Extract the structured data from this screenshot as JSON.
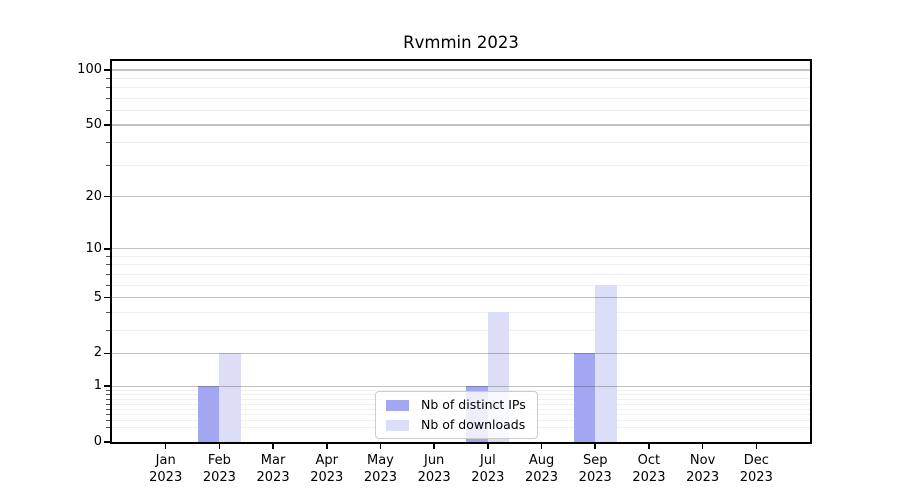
{
  "title": "Rvmmin 2023",
  "chart_data": {
    "type": "bar",
    "title": "Rvmmin 2023",
    "categories": [
      "Jan",
      "Feb",
      "Mar",
      "Apr",
      "May",
      "Jun",
      "Jul",
      "Aug",
      "Sep",
      "Oct",
      "Nov",
      "Dec"
    ],
    "category_year": "2023",
    "series": [
      {
        "name": "Nb of distinct IPs",
        "color": "#a3a6f0",
        "values": [
          0,
          1,
          0,
          0,
          0,
          0,
          1,
          0,
          2,
          0,
          0,
          0
        ]
      },
      {
        "name": "Nb of downloads",
        "color": "#dcdef8",
        "values": [
          0,
          2,
          0,
          0,
          0,
          0,
          4,
          0,
          6,
          0,
          0,
          0
        ]
      }
    ],
    "xlabel": "",
    "ylabel": "",
    "yscale": "log1p",
    "ylim": [
      0,
      100
    ],
    "yticks": [
      0,
      1,
      2,
      5,
      10,
      20,
      50,
      100
    ],
    "yticks_minor": [
      0.2,
      0.3,
      0.4,
      0.5,
      0.6,
      0.7,
      0.8,
      0.9,
      3,
      4,
      6,
      7,
      8,
      9,
      30,
      40,
      60,
      70,
      80,
      90
    ],
    "grid": true,
    "legend_position": "lower center"
  },
  "colors": {
    "axis": "#000000",
    "grid_major": "rgba(0,0,0,0.24)",
    "grid_minor": "rgba(0,0,0,0.06)",
    "background": "#ffffff"
  }
}
